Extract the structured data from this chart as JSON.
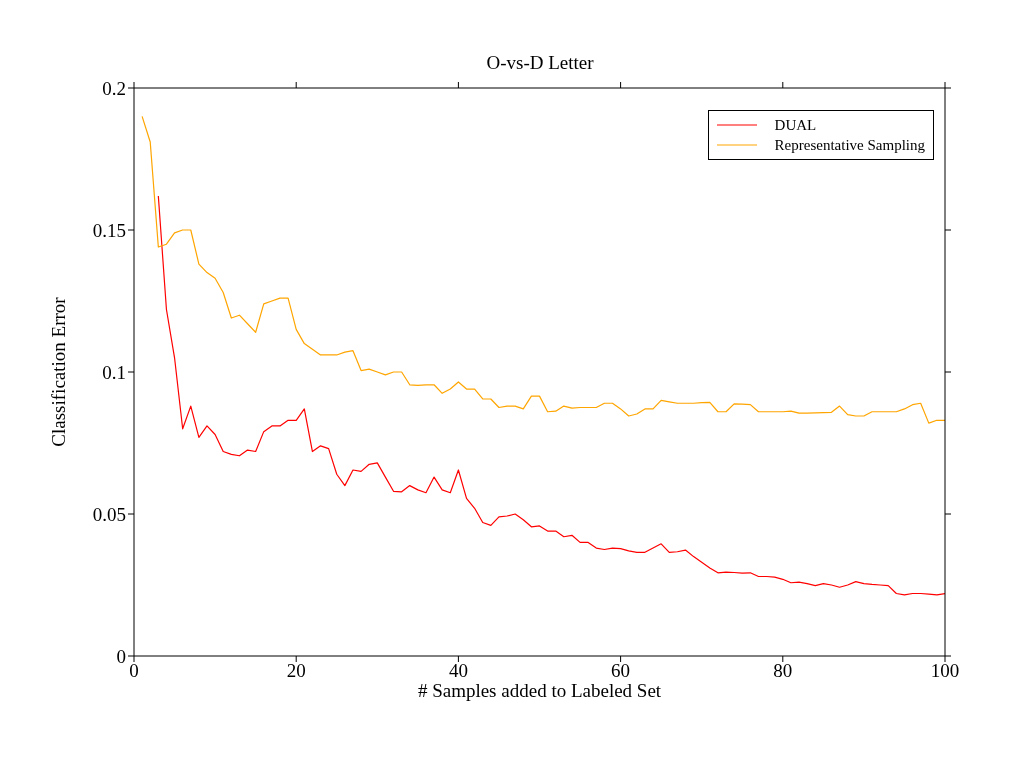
{
  "chart_data": {
    "type": "line",
    "title": "O-vs-D Letter",
    "xlabel": "# Samples added to Labeled Set",
    "ylabel": "Classification Error",
    "xlim": [
      0,
      100
    ],
    "xticks": [
      0,
      20,
      40,
      60,
      80,
      100
    ],
    "ylim": [
      0,
      0.2
    ],
    "yticks": [
      0,
      0.05,
      0.1,
      0.15,
      0.2
    ],
    "grid": false,
    "legend": "top right",
    "marker": "none",
    "line_style": "solid",
    "x": [
      1,
      2,
      3,
      4,
      5,
      6,
      7,
      8,
      9,
      10,
      11,
      12,
      13,
      14,
      15,
      16,
      17,
      18,
      19,
      20,
      21,
      22,
      23,
      24,
      25,
      26,
      27,
      28,
      29,
      30,
      31,
      32,
      33,
      34,
      35,
      36,
      37,
      38,
      39,
      40,
      41,
      42,
      43,
      44,
      45,
      46,
      47,
      48,
      49,
      50,
      51,
      52,
      53,
      54,
      55,
      56,
      57,
      58,
      59,
      60,
      61,
      62,
      63,
      64,
      65,
      66,
      67,
      68,
      69,
      70,
      71,
      72,
      73,
      74,
      75,
      76,
      77,
      78,
      79,
      80,
      81,
      82,
      83,
      84,
      85,
      86,
      87,
      88,
      89,
      90,
      91,
      92,
      93,
      94,
      95,
      96,
      97,
      98,
      99,
      100
    ],
    "series": [
      {
        "name": "DUAL",
        "color": "#ff0000",
        "values": [
          null,
          null,
          0.162,
          0.122,
          0.105,
          0.08,
          0.088,
          0.077,
          0.081,
          0.078,
          0.072,
          0.071,
          0.0705,
          0.0725,
          0.072,
          0.079,
          0.081,
          0.081,
          0.083,
          0.083,
          0.087,
          0.072,
          0.074,
          0.073,
          0.064,
          0.06,
          0.0655,
          0.065,
          0.0675,
          0.068,
          0.063,
          0.058,
          0.0578,
          0.06,
          0.0585,
          0.0575,
          0.063,
          0.0585,
          0.0575,
          0.0655,
          0.0555,
          0.052,
          0.047,
          0.046,
          0.049,
          0.0493,
          0.05,
          0.048,
          0.0455,
          0.0458,
          0.044,
          0.044,
          0.042,
          0.0425,
          0.04,
          0.04,
          0.038,
          0.0375,
          0.038,
          0.0378,
          0.037,
          0.0365,
          0.0365,
          0.038,
          0.0395,
          0.0365,
          0.0367,
          0.0373,
          0.035,
          0.033,
          0.031,
          0.0293,
          0.0295,
          0.0294,
          0.0292,
          0.0293,
          0.028,
          0.028,
          0.0278,
          0.027,
          0.0258,
          0.026,
          0.0255,
          0.0248,
          0.0255,
          0.025,
          0.0242,
          0.025,
          0.0262,
          0.0255,
          0.0252,
          0.025,
          0.0248,
          0.022,
          0.0215,
          0.022,
          0.022,
          0.0218,
          0.0215,
          0.022
        ]
      },
      {
        "name": "Representative Sampling",
        "color": "#ffa500",
        "values": [
          0.19,
          0.181,
          0.144,
          0.145,
          0.149,
          0.15,
          0.15,
          0.138,
          0.135,
          0.133,
          0.128,
          0.119,
          0.12,
          0.117,
          0.114,
          0.124,
          0.125,
          0.126,
          0.126,
          0.115,
          0.11,
          0.108,
          0.106,
          0.106,
          0.106,
          0.107,
          0.1075,
          0.1005,
          0.101,
          0.1,
          0.099,
          0.1,
          0.1,
          0.0955,
          0.0953,
          0.0955,
          0.0955,
          0.0925,
          0.094,
          0.0965,
          0.094,
          0.094,
          0.0905,
          0.0905,
          0.0875,
          0.088,
          0.088,
          0.087,
          0.0915,
          0.0915,
          0.086,
          0.0862,
          0.088,
          0.0873,
          0.0875,
          0.0875,
          0.0875,
          0.089,
          0.089,
          0.087,
          0.0845,
          0.0852,
          0.087,
          0.087,
          0.09,
          0.0895,
          0.089,
          0.089,
          0.089,
          0.0892,
          0.0893,
          0.086,
          0.086,
          0.0888,
          0.0887,
          0.0885,
          0.086,
          0.086,
          0.086,
          0.086,
          0.0862,
          0.0855,
          0.0855,
          0.0856,
          0.0857,
          0.0858,
          0.088,
          0.085,
          0.0845,
          0.0845,
          0.086,
          0.086,
          0.086,
          0.086,
          0.087,
          0.0885,
          0.089,
          0.082,
          0.083,
          0.083
        ]
      }
    ]
  }
}
